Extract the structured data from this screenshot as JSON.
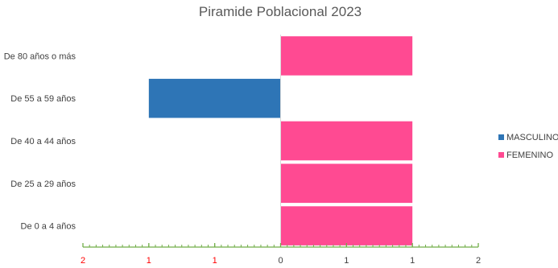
{
  "chart_data": {
    "type": "bar",
    "orientation": "horizontal",
    "title": "Piramide Poblacional 2023",
    "categories": [
      "De 0 a 4 años",
      "De 25 a 29 años",
      "De 40 a 44 años",
      "De 55 a 59 años",
      "De 80 años o más"
    ],
    "series": [
      {
        "name": "MASCULINO",
        "color": "#2e75b6",
        "values": [
          0,
          0,
          0,
          -1,
          0
        ]
      },
      {
        "name": "FEMENINO",
        "color": "#ff4a92",
        "values": [
          1,
          1,
          1,
          0,
          1
        ]
      }
    ],
    "xlim": [
      -1.5,
      1.5
    ],
    "x_ticks": [
      {
        "value": -1.5,
        "label": "2",
        "color": "#ff0000"
      },
      {
        "value": -1.0,
        "label": "1",
        "color": "#ff0000"
      },
      {
        "value": -0.5,
        "label": "1",
        "color": "#ff0000"
      },
      {
        "value": 0,
        "label": "0",
        "color": "#404040"
      },
      {
        "value": 0.5,
        "label": "1",
        "color": "#404040"
      },
      {
        "value": 1.0,
        "label": "1",
        "color": "#404040"
      },
      {
        "value": 1.5,
        "label": "2",
        "color": "#404040"
      }
    ],
    "axis_color": "#70ad47",
    "zero_line_color": "#d9d9d9",
    "grid": false,
    "legend_position": "right"
  }
}
